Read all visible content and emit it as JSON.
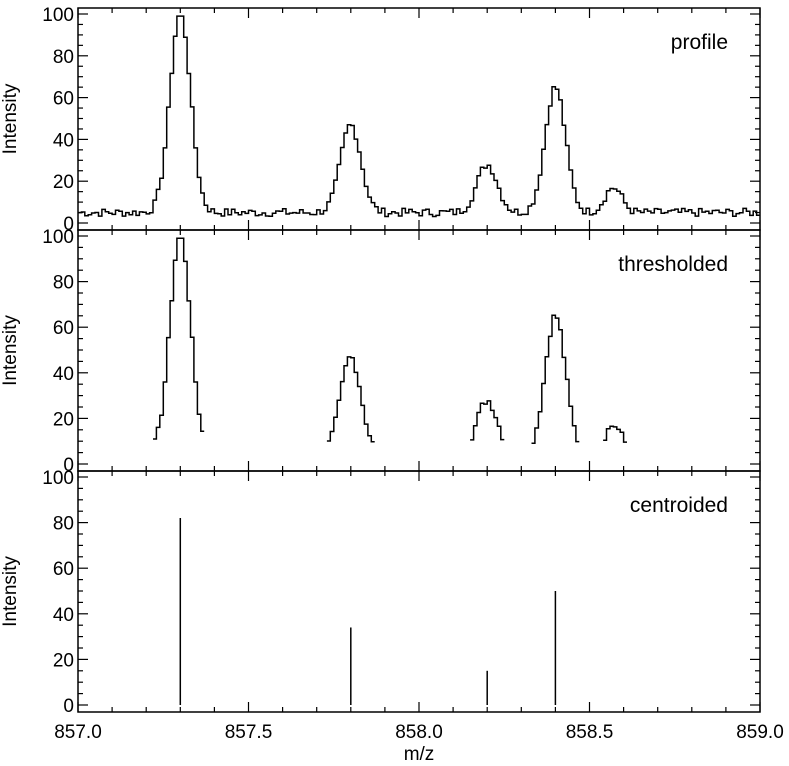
{
  "chart_data": {
    "type": "line",
    "xlabel": "m/z",
    "xlim": [
      857.0,
      859.0
    ],
    "x_ticks": [
      "857.0",
      "857.5",
      "858.0",
      "858.5",
      "859.0"
    ],
    "panels": [
      {
        "label": "profile",
        "ylabel": "Intensity",
        "ylim": [
          0,
          100
        ],
        "y_ticks": [
          "0",
          "20",
          "40",
          "60",
          "80",
          "100"
        ],
        "style": "step",
        "peaks": [
          {
            "center": 857.3,
            "height": 96,
            "width": 0.03
          },
          {
            "center": 857.8,
            "height": 42,
            "width": 0.03
          },
          {
            "center": 858.2,
            "height": 23,
            "width": 0.03
          },
          {
            "center": 858.4,
            "height": 60,
            "width": 0.03
          },
          {
            "center": 858.57,
            "height": 12,
            "width": 0.025
          }
        ],
        "baseline": 5
      },
      {
        "label": "thresholded",
        "ylabel": "Intensity",
        "ylim": [
          0,
          100
        ],
        "y_ticks": [
          "0",
          "20",
          "40",
          "60",
          "80",
          "100"
        ],
        "style": "step",
        "threshold": 9,
        "peaks": [
          {
            "center": 857.3,
            "height": 96,
            "width": 0.03
          },
          {
            "center": 857.8,
            "height": 42,
            "width": 0.03
          },
          {
            "center": 858.2,
            "height": 23,
            "width": 0.03
          },
          {
            "center": 858.4,
            "height": 60,
            "width": 0.03
          },
          {
            "center": 858.57,
            "height": 12,
            "width": 0.025
          }
        ]
      },
      {
        "label": "centroided",
        "ylabel": "Intensity",
        "ylim": [
          0,
          100
        ],
        "y_ticks": [
          "0",
          "20",
          "40",
          "60",
          "80",
          "100"
        ],
        "style": "stick",
        "x": [
          857.3,
          857.8,
          858.2,
          858.4
        ],
        "y": [
          82,
          34,
          15,
          50
        ]
      }
    ]
  }
}
